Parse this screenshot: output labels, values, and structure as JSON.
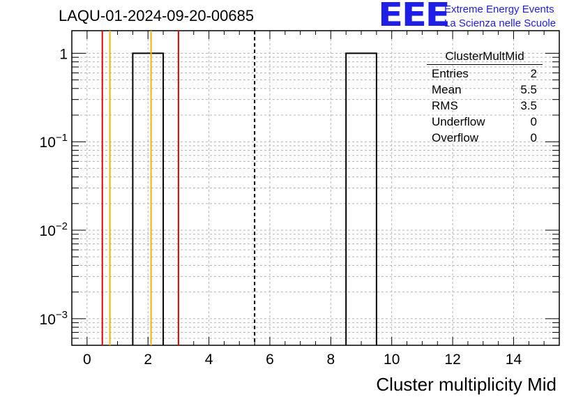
{
  "page": {
    "run_label": "LAQU-01-2024-09-20-00685"
  },
  "logo": {
    "mark": "EEE",
    "line1": "Extreme Energy Events",
    "line2": "La Scienza nelle Scuole",
    "color": "#1e1ee6"
  },
  "stats_box": {
    "title": "ClusterMultMid",
    "rows": [
      {
        "label": "Entries",
        "value": "2"
      },
      {
        "label": "Mean",
        "value": "5.5"
      },
      {
        "label": "RMS",
        "value": "3.5"
      },
      {
        "label": "Underflow",
        "value": "0"
      },
      {
        "label": "Overflow",
        "value": "0"
      }
    ]
  },
  "chart_data": {
    "type": "bar",
    "subtype": "histogram",
    "title": "LAQU-01-2024-09-20-00685",
    "xlabel": "Cluster multiplicity Mid",
    "ylabel": "",
    "xlim": [
      -0.5,
      15.5
    ],
    "ylim": [
      0.0005,
      1.8
    ],
    "yscale": "log",
    "grid": true,
    "bins": [
      {
        "low": 1.5,
        "high": 2.5,
        "count": 1
      },
      {
        "low": 8.5,
        "high": 9.5,
        "count": 1
      }
    ],
    "x_ticks": [
      0,
      2,
      4,
      6,
      8,
      10,
      12,
      14
    ],
    "x_tick_labels": [
      "0",
      "2",
      "4",
      "6",
      "8",
      "10",
      "12",
      "14"
    ],
    "y_ticks": [
      {
        "value": 1,
        "label": "1",
        "sup": ""
      },
      {
        "value": 0.1,
        "label": "10",
        "sup": "−1"
      },
      {
        "value": 0.01,
        "label": "10",
        "sup": "−2"
      },
      {
        "value": 0.001,
        "label": "10",
        "sup": "−3"
      }
    ],
    "vertical_lines": [
      {
        "x": 0.5,
        "color": "#e00000",
        "style": "solid"
      },
      {
        "x": 0.75,
        "color": "#f0b400",
        "style": "solid"
      },
      {
        "x": 2.1,
        "color": "#f0b400",
        "style": "solid"
      },
      {
        "x": 3.0,
        "color": "#e00000",
        "style": "solid"
      },
      {
        "x": 5.5,
        "color": "#000000",
        "style": "dashed"
      }
    ]
  }
}
